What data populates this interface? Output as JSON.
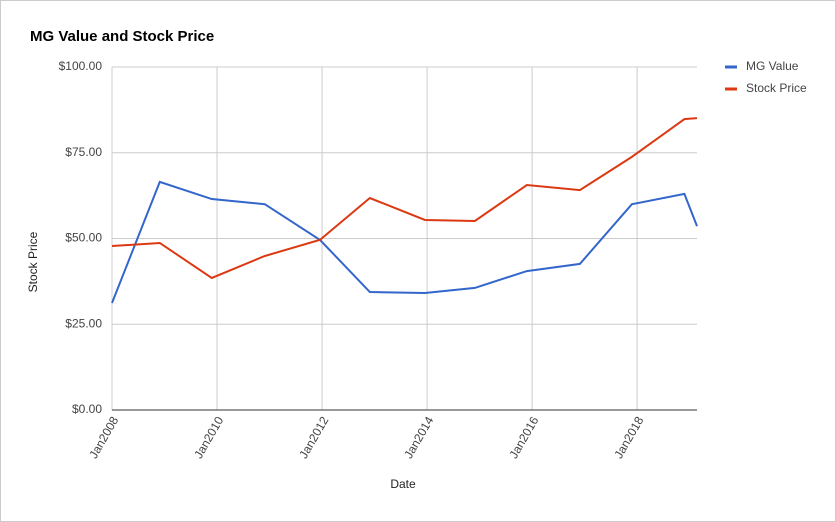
{
  "chart_data": {
    "type": "line",
    "title": "MG Value and Stock Price",
    "x_label": "Date",
    "y_label": "Stock Price",
    "x": [
      2008.0,
      2008.91,
      2009.9,
      2010.91,
      2011.96,
      2012.91,
      2013.96,
      2014.91,
      2015.9,
      2016.91,
      2017.9,
      2018.9,
      2019.14
    ],
    "series": [
      {
        "name": "MG Value",
        "color": "#3366cc",
        "values": [
          31.2,
          66.5,
          61.5,
          60,
          49.6,
          34.4,
          34.1,
          35.6,
          40.5,
          42.6,
          60,
          63,
          53.6
        ]
      },
      {
        "name": "Stock Price",
        "color": "#dc3912",
        "values": [
          47.8,
          48.7,
          38.5,
          44.9,
          49.6,
          61.8,
          55.4,
          55.1,
          65.6,
          64.1,
          73.8,
          84.8,
          85.1
        ]
      }
    ],
    "xlim": [
      2008,
      2019.14
    ],
    "xticks": [
      {
        "value": 2008,
        "label": "Jan2008"
      },
      {
        "value": 2010,
        "label": "Jan2010"
      },
      {
        "value": 2012,
        "label": "Jan2012"
      },
      {
        "value": 2014,
        "label": "Jan2014"
      },
      {
        "value": 2016,
        "label": "Jan2016"
      },
      {
        "value": 2018,
        "label": "Jan2018"
      }
    ],
    "ylim": [
      0,
      100
    ],
    "yticks": [
      {
        "value": 0,
        "label": "$0.00"
      },
      {
        "value": 25,
        "label": "$25.00"
      },
      {
        "value": 50,
        "label": "$50.00"
      },
      {
        "value": 75,
        "label": "$75.00"
      },
      {
        "value": 100,
        "label": "$100.00"
      }
    ],
    "grid": true,
    "legend": "right"
  }
}
